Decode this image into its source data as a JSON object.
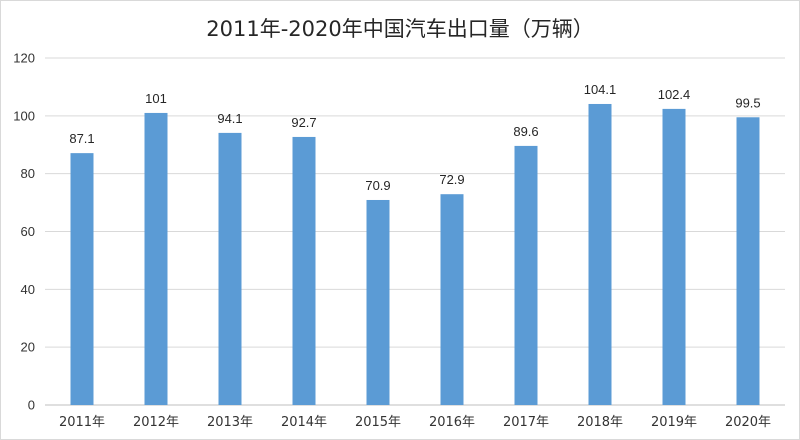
{
  "chart_data": {
    "type": "bar",
    "title": "2011年-2020年中国汽车出口量（万辆）",
    "xlabel": "",
    "ylabel": "",
    "categories": [
      "2011年",
      "2012年",
      "2013年",
      "2014年",
      "2015年",
      "2016年",
      "2017年",
      "2018年",
      "2019年",
      "2020年"
    ],
    "values": [
      87.1,
      101,
      94.1,
      92.7,
      70.9,
      72.9,
      89.6,
      104.1,
      102.4,
      99.5
    ],
    "value_labels": [
      "87.1",
      "101",
      "94.1",
      "92.7",
      "70.9",
      "72.9",
      "89.6",
      "104.1",
      "102.4",
      "99.5"
    ],
    "ylim": [
      0,
      120
    ],
    "yticks": [
      0,
      20,
      40,
      60,
      80,
      100,
      120
    ],
    "grid": true,
    "legend": "none",
    "colors": {
      "bar": "#5b9bd5",
      "grid": "#d9d9d9",
      "axis": "#bfbfbf"
    }
  }
}
